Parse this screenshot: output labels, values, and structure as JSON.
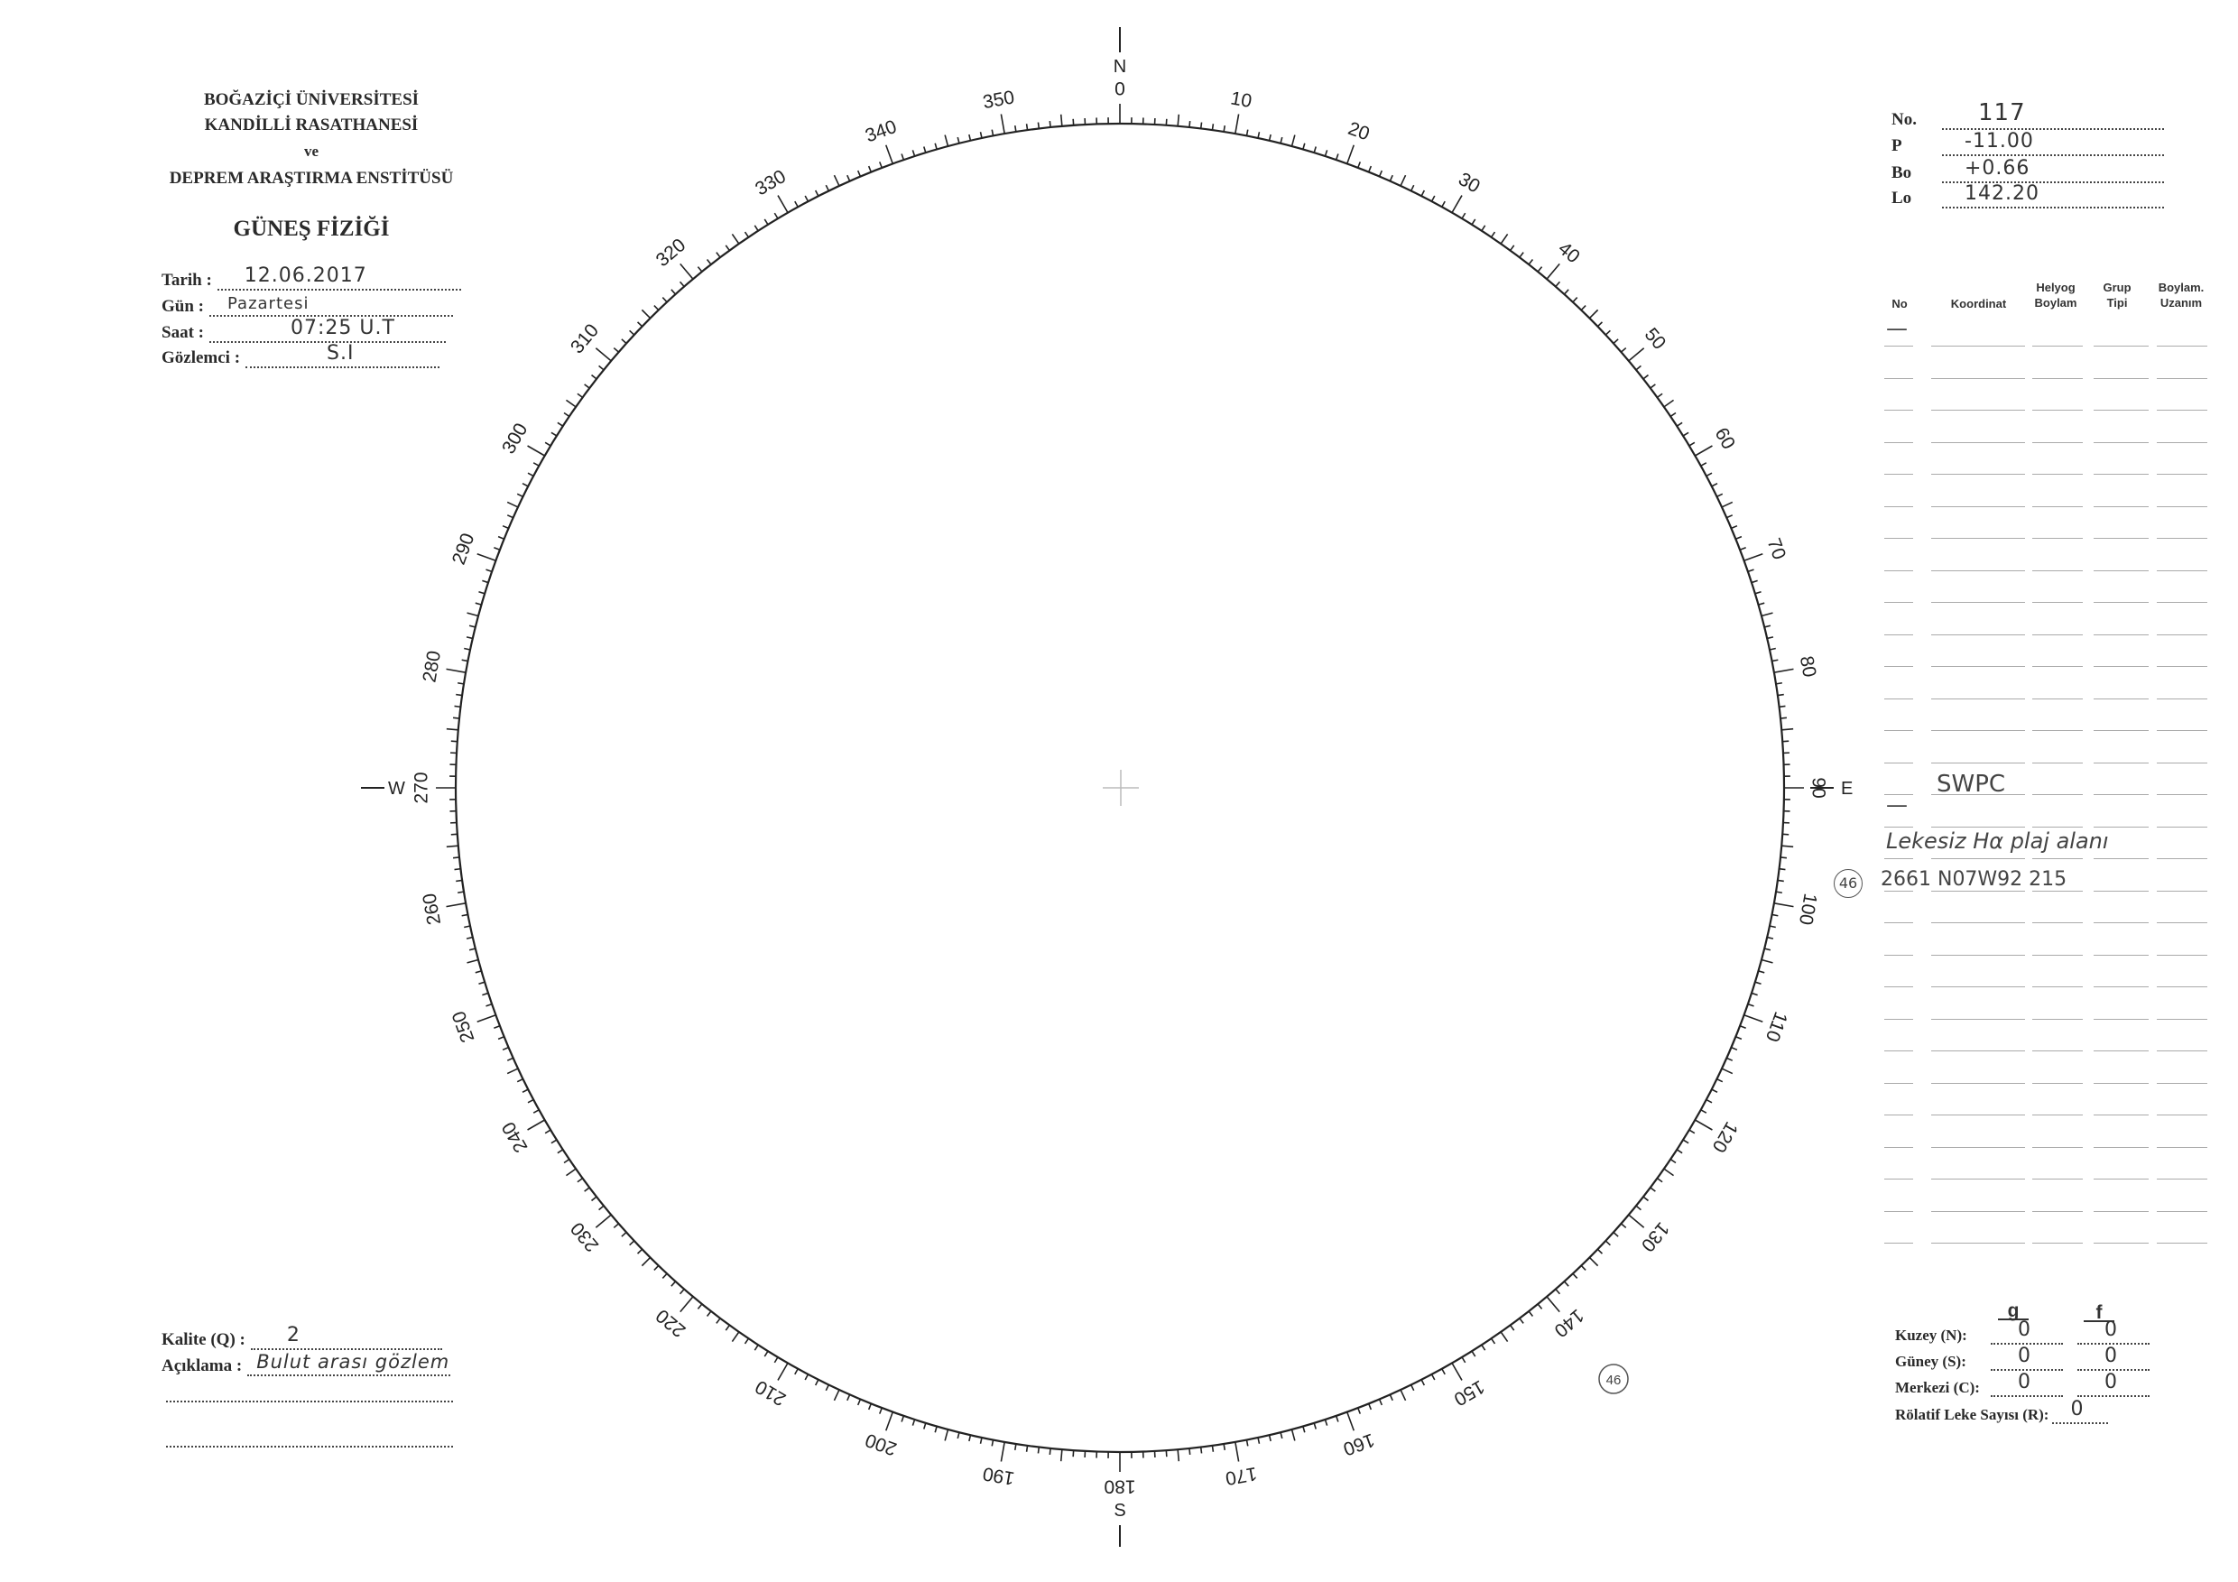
{
  "header": {
    "institution": [
      "BOĞAZİÇİ ÜNİVERSİTESİ",
      "KANDİLLİ RASATHANESİ",
      "ve",
      "DEPREM ARAŞTIRMA ENSTİTÜSÜ"
    ],
    "title": "GÜNEŞ FİZİĞİ"
  },
  "observation": {
    "date_label": "Tarih :",
    "date_value": "12.06.2017",
    "day_label": "Gün :",
    "day_value": "Pazartesi",
    "time_label": "Saat :",
    "time_value": "07:25 U.T",
    "observer_label": "Gözlemci :",
    "observer_value": "S.I"
  },
  "params": {
    "no_label": "No.",
    "no_value": "117",
    "p_label": "P",
    "p_value": "-11.00",
    "bo_label": "Bo",
    "bo_value": "+0.66",
    "lo_label": "Lo",
    "lo_value": "142.20"
  },
  "table": {
    "headers": [
      "No",
      "Koordinat",
      "Helyog Boylam",
      "Grup Tipi",
      "Boylam. Uzanım"
    ],
    "first_row_no": "—",
    "notes": {
      "swpc": "SWPC",
      "dash": "—",
      "plage": "Lekesiz Hα plaj alanı",
      "entry_circle": "46",
      "entry": "2661  N07W92  215"
    }
  },
  "dial": {
    "north": "N",
    "east": "E",
    "south": "S",
    "west": "W",
    "degree_labels": [
      "0",
      "10",
      "20",
      "30",
      "40",
      "50",
      "60",
      "70",
      "80",
      "90",
      "100",
      "110",
      "120",
      "130",
      "140",
      "150",
      "160",
      "170",
      "180",
      "190",
      "200",
      "210",
      "220",
      "230",
      "240",
      "250",
      "260",
      "270",
      "280",
      "290",
      "300",
      "310",
      "320",
      "330",
      "340",
      "350"
    ],
    "marker": "46"
  },
  "quality": {
    "quality_label": "Kalite (Q) :",
    "quality_value": "2",
    "comment_label": "Açıklama :",
    "comment_value": "Bulut arası gözlem"
  },
  "counts": {
    "g_header": "g",
    "f_header": "f",
    "rows": [
      {
        "label": "Kuzey (N):",
        "g": "0",
        "f": "0"
      },
      {
        "label": "Güney (S):",
        "g": "0",
        "f": "0"
      },
      {
        "label": "Merkezi (C):",
        "g": "0",
        "f": "0"
      }
    ],
    "relative_label": "Rölatif Leke Sayısı (R):",
    "relative_value": "0"
  }
}
